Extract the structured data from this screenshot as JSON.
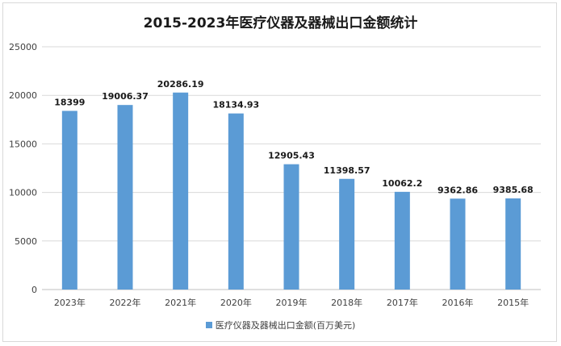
{
  "chart_data": {
    "type": "bar",
    "title": "2015-2023年医疗仪器及器械出口金额统计",
    "categories": [
      "2023年",
      "2022年",
      "2021年",
      "2020年",
      "2019年",
      "2018年",
      "2017年",
      "2016年",
      "2015年"
    ],
    "series": [
      {
        "name": "医疗仪器及器械出口金额(百万美元)",
        "values": [
          18399,
          19006.37,
          20286.19,
          18134.93,
          12905.43,
          11398.57,
          10062.2,
          9362.86,
          9385.68
        ],
        "labels": [
          "18399",
          "19006.37",
          "20286.19",
          "18134.93",
          "12905.43",
          "11398.57",
          "10062.2",
          "9362.86",
          "9385.68"
        ]
      }
    ],
    "yticks": [
      "0",
      "5000",
      "10000",
      "15000",
      "20000",
      "25000"
    ],
    "ylim": [
      0,
      25000
    ],
    "grid": true,
    "legend_position": "bottom",
    "bar_color": "#5b9bd5"
  }
}
